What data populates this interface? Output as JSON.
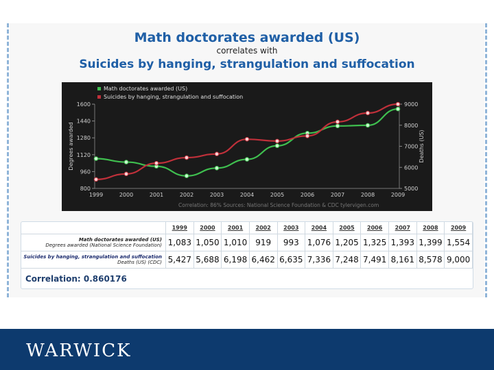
{
  "titles": {
    "main": "Math doctorates awarded (US)",
    "sub": "correlates with",
    "second": "Suicides by hanging, strangulation and suffocation"
  },
  "chart_data": {
    "type": "line",
    "x": [
      1999,
      2000,
      2001,
      2002,
      2003,
      2004,
      2005,
      2006,
      2007,
      2008,
      2009
    ],
    "series": [
      {
        "name": "Math doctorates awarded (US)",
        "axis": "left",
        "color": "#3fbf4f",
        "values": [
          1083,
          1050,
          1010,
          919,
          993,
          1076,
          1205,
          1325,
          1393,
          1399,
          1554
        ]
      },
      {
        "name": "Suicides by hanging, strangulation and suffocation",
        "axis": "right",
        "color": "#c0303a",
        "values": [
          5427,
          5688,
          6198,
          6462,
          6635,
          7336,
          7248,
          7491,
          8161,
          8578,
          9000
        ]
      }
    ],
    "ylabel_left": "Degrees awarded",
    "ylabel_right": "Deaths (US)",
    "ylim_left": [
      800,
      1600
    ],
    "ylim_right": [
      5000,
      9000
    ],
    "yticks_left": [
      "800",
      "960",
      "1120",
      "1280",
      "1440",
      "1600"
    ],
    "yticks_right": [
      "5000",
      "6000",
      "7000",
      "8000",
      "9000"
    ],
    "xticks": [
      "1999",
      "2000",
      "2001",
      "2002",
      "2003",
      "2004",
      "2005",
      "2006",
      "2007",
      "2008",
      "2009"
    ],
    "legend_placement": "top-left",
    "background": "#1a1a1a",
    "footer_note": "Correlation: 86%    Sources: National Science Foundation & CDC  tylervigen.com"
  },
  "table": {
    "years": [
      "1999",
      "2000",
      "2001",
      "2002",
      "2003",
      "2004",
      "2005",
      "2006",
      "2007",
      "2008",
      "2009"
    ],
    "row_a_label1": "Math doctorates awarded (US)",
    "row_a_label2": "Degrees awarded (National Science Foundation)",
    "row_a_values": [
      "1,083",
      "1,050",
      "1,010",
      "919",
      "993",
      "1,076",
      "1,205",
      "1,325",
      "1,393",
      "1,399",
      "1,554"
    ],
    "row_b_label1": "Suicides by hanging, strangulation and suffocation",
    "row_b_label2": "Deaths (US) (CDC)",
    "row_b_values": [
      "5,427",
      "5,688",
      "6,198",
      "6,462",
      "6,635",
      "7,336",
      "7,248",
      "7,491",
      "8,161",
      "8,578",
      "9,000"
    ],
    "correlation": "Correlation: 0.860176"
  },
  "footer": {
    "logo_text": "WARWICK",
    "color": "#0d3a6e"
  }
}
